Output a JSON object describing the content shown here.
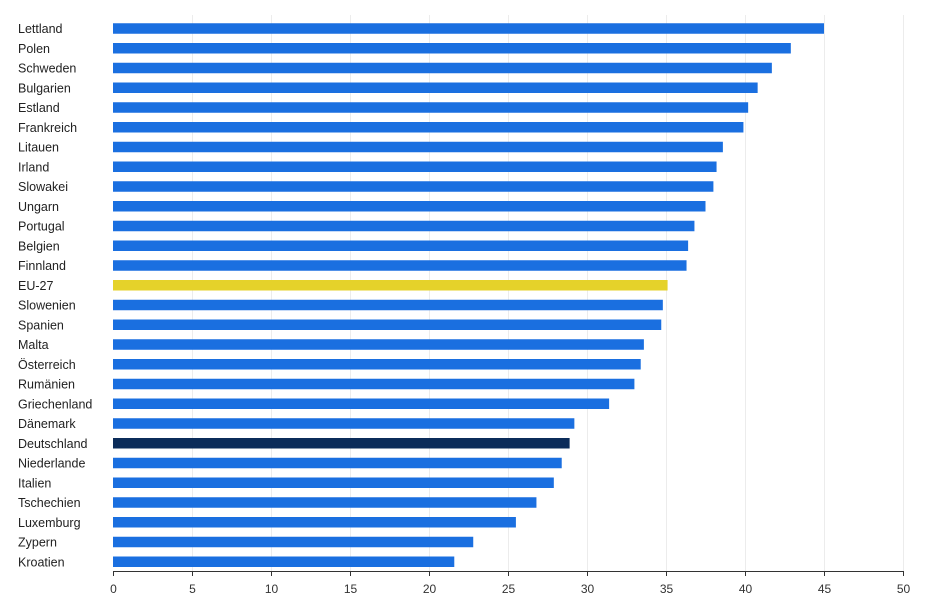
{
  "chart_data": {
    "type": "bar",
    "orientation": "horizontal",
    "title": "",
    "xlabel": "",
    "ylabel": "",
    "xlim": [
      0,
      50
    ],
    "xticks": [
      "0",
      "5",
      "10",
      "15",
      "20",
      "25",
      "30",
      "35",
      "40",
      "45",
      "50"
    ],
    "grid": true,
    "categories": [
      "Lettland",
      "Polen",
      "Schweden",
      "Bulgarien",
      "Estland",
      "Frankreich",
      "Litauen",
      "Irland",
      "Slowakei",
      "Ungarn",
      "Portugal",
      "Belgien",
      "Finnland",
      "EU-27",
      "Slowenien",
      "Spanien",
      "Malta",
      "Österreich",
      "Rumänien",
      "Griechenland",
      "Dänemark",
      "Deutschland",
      "Niederlande",
      "Italien",
      "Tschechien",
      "Luxemburg",
      "Zypern",
      "Kroatien"
    ],
    "values": [
      45.0,
      42.9,
      41.7,
      40.8,
      40.2,
      39.9,
      38.6,
      38.2,
      38.0,
      37.5,
      36.8,
      36.4,
      36.3,
      35.1,
      34.8,
      34.7,
      33.6,
      33.4,
      33.0,
      31.4,
      29.2,
      28.9,
      28.4,
      27.9,
      26.8,
      25.5,
      22.8,
      21.6
    ],
    "colors": {
      "default": "#1a6fe0",
      "EU-27": "#e5d22a",
      "Deutschland": "#0b2c5a"
    }
  }
}
